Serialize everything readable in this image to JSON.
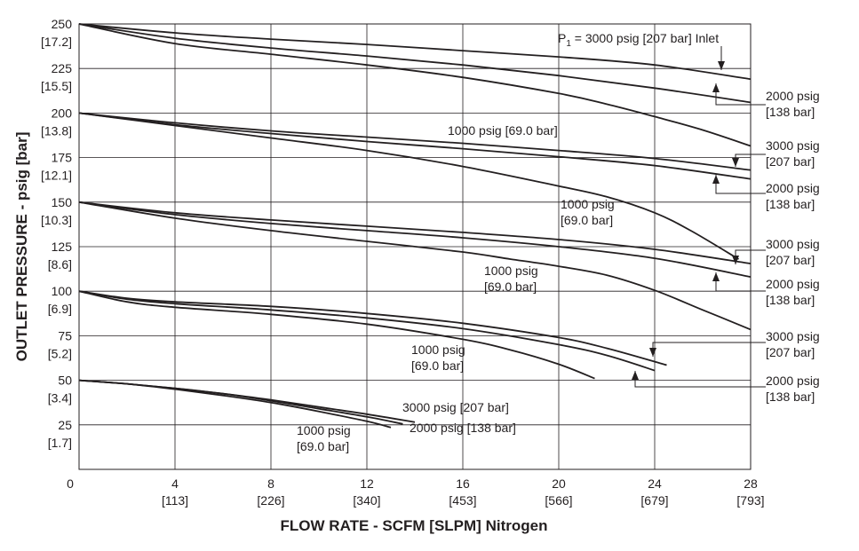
{
  "chart_data": {
    "type": "line",
    "title": "",
    "xlabel": "FLOW RATE - SCFM [SLPM] Nitrogen",
    "ylabel": "OUTLET PRESSURE - psig [bar]",
    "xlim": [
      0,
      28
    ],
    "ylim": [
      0,
      250
    ],
    "grid": true,
    "x_ticks": [
      {
        "value": 0,
        "label": "0",
        "sublabel": ""
      },
      {
        "value": 4,
        "label": "4",
        "sublabel": "[113]"
      },
      {
        "value": 8,
        "label": "8",
        "sublabel": "[226]"
      },
      {
        "value": 12,
        "label": "12",
        "sublabel": "[340]"
      },
      {
        "value": 16,
        "label": "16",
        "sublabel": "[453]"
      },
      {
        "value": 20,
        "label": "20",
        "sublabel": "[566]"
      },
      {
        "value": 24,
        "label": "24",
        "sublabel": "[679]"
      },
      {
        "value": 28,
        "label": "28",
        "sublabel": "[793]"
      }
    ],
    "y_ticks": [
      {
        "value": 250,
        "label": "250",
        "sublabel": "[17.2]"
      },
      {
        "value": 225,
        "label": "225",
        "sublabel": "[15.5]"
      },
      {
        "value": 200,
        "label": "200",
        "sublabel": "[13.8]"
      },
      {
        "value": 175,
        "label": "175",
        "sublabel": "[12.1]"
      },
      {
        "value": 150,
        "label": "150",
        "sublabel": "[10.3]"
      },
      {
        "value": 125,
        "label": "125",
        "sublabel": "[8.6]"
      },
      {
        "value": 100,
        "label": "100",
        "sublabel": "[6.9]"
      },
      {
        "value": 75,
        "label": "75",
        "sublabel": "[5.2]"
      },
      {
        "value": 50,
        "label": "50",
        "sublabel": "[3.4]"
      },
      {
        "value": 25,
        "label": "25",
        "sublabel": "[1.7]"
      }
    ],
    "series": [
      {
        "group": 250,
        "x": [
          0,
          4,
          8,
          12,
          16,
          20,
          24,
          28
        ],
        "y": [
          250,
          245,
          241.5,
          238.5,
          235,
          231.5,
          227,
          219
        ]
      },
      {
        "group": 250,
        "x": [
          0,
          4,
          8,
          12,
          16,
          20,
          24,
          28
        ],
        "y": [
          250,
          242,
          236.5,
          232,
          227,
          221,
          214,
          206
        ]
      },
      {
        "group": 250,
        "x": [
          0,
          4,
          8,
          12,
          16,
          20,
          22,
          24,
          26,
          28
        ],
        "y": [
          250,
          239,
          233,
          227,
          220,
          211,
          205,
          198,
          190.5,
          181.5
        ]
      },
      {
        "group": 200,
        "x": [
          0,
          4,
          8,
          12,
          16,
          20,
          24,
          28
        ],
        "y": [
          200,
          194.5,
          190,
          186.5,
          183,
          179,
          174.5,
          168
        ]
      },
      {
        "group": 200,
        "x": [
          0,
          4,
          8,
          12,
          16,
          20,
          24,
          28
        ],
        "y": [
          200,
          193.5,
          188.5,
          184,
          180,
          175.5,
          170.5,
          163
        ]
      },
      {
        "group": 200,
        "x": [
          0,
          4,
          8,
          12,
          16,
          20,
          22,
          24,
          25.5,
          27.5
        ],
        "y": [
          200,
          193,
          186,
          179,
          170,
          159,
          153,
          144,
          134,
          118
        ]
      },
      {
        "group": 150,
        "x": [
          0,
          4,
          8,
          12,
          16,
          20,
          24,
          28
        ],
        "y": [
          150,
          144,
          140,
          136.5,
          133,
          129,
          123.5,
          115.5
        ]
      },
      {
        "group": 150,
        "x": [
          0,
          4,
          8,
          12,
          16,
          20,
          24,
          28
        ],
        "y": [
          150,
          143,
          138,
          134,
          130,
          125,
          118.5,
          108
        ]
      },
      {
        "group": 150,
        "x": [
          0,
          4,
          8,
          12,
          16,
          18,
          20,
          22,
          24,
          26,
          28
        ],
        "y": [
          150,
          141,
          134,
          128,
          122,
          118,
          114,
          109,
          100.5,
          89.5,
          78.5
        ]
      },
      {
        "group": 100,
        "x": [
          0,
          2,
          4,
          8,
          12,
          16,
          20,
          22,
          24.5
        ],
        "y": [
          100,
          96,
          94,
          91.5,
          87.5,
          82,
          74,
          68,
          58.5
        ]
      },
      {
        "group": 100,
        "x": [
          0,
          2,
          4,
          8,
          12,
          16,
          20,
          22,
          24
        ],
        "y": [
          100,
          95.5,
          93,
          89.5,
          85,
          79,
          70,
          64,
          55.5
        ]
      },
      {
        "group": 100,
        "x": [
          0,
          2,
          4,
          8,
          12,
          16,
          18,
          20,
          21.5
        ],
        "y": [
          100,
          94,
          91,
          87,
          81.5,
          73,
          67,
          59,
          51
        ]
      },
      {
        "group": 50,
        "x": [
          0,
          2,
          4,
          6,
          8,
          10,
          12,
          14
        ],
        "y": [
          50,
          48,
          45.5,
          42.5,
          39,
          35,
          31,
          26.5
        ]
      },
      {
        "group": 50,
        "x": [
          0,
          2,
          4,
          6,
          8,
          10,
          12,
          13.5
        ],
        "y": [
          50,
          48,
          45.5,
          42.5,
          38.5,
          34,
          29.5,
          25.5
        ]
      },
      {
        "group": 50,
        "x": [
          0,
          2,
          4,
          6,
          8,
          10,
          12,
          13
        ],
        "y": [
          50,
          48,
          45,
          41.5,
          37.5,
          32.5,
          27,
          23.5
        ]
      }
    ],
    "annotations": [
      {
        "lines": [
          "P1 = 3000 psig [207 bar] Inlet"
        ]
      },
      {
        "lines": [
          "2000 psig",
          "[138 bar]"
        ]
      },
      {
        "lines": [
          "1000 psig [69.0 bar]"
        ]
      },
      {
        "lines": [
          "3000 psig",
          "[207 bar]"
        ]
      },
      {
        "lines": [
          "2000 psig",
          "[138 bar]"
        ]
      },
      {
        "lines": [
          "1000 psig",
          "[69.0 bar]"
        ]
      },
      {
        "lines": [
          "3000 psig",
          "[207 bar]"
        ]
      },
      {
        "lines": [
          "2000 psig",
          "[138 bar]"
        ]
      },
      {
        "lines": [
          "1000 psig",
          "[69.0 bar]"
        ]
      },
      {
        "lines": [
          "3000 psig",
          "[207 bar]"
        ]
      },
      {
        "lines": [
          "2000 psig",
          "[138 bar]"
        ]
      },
      {
        "lines": [
          "1000 psig",
          "[69.0 bar]"
        ]
      },
      {
        "lines": [
          "3000 psig [207 bar]"
        ]
      },
      {
        "lines": [
          "2000 psig [138 bar]"
        ]
      },
      {
        "lines": [
          "1000 psig",
          "[69.0 bar]"
        ]
      }
    ],
    "colors": {
      "line": "#231f20",
      "grid": "#231f20",
      "text": "#231f20"
    }
  }
}
